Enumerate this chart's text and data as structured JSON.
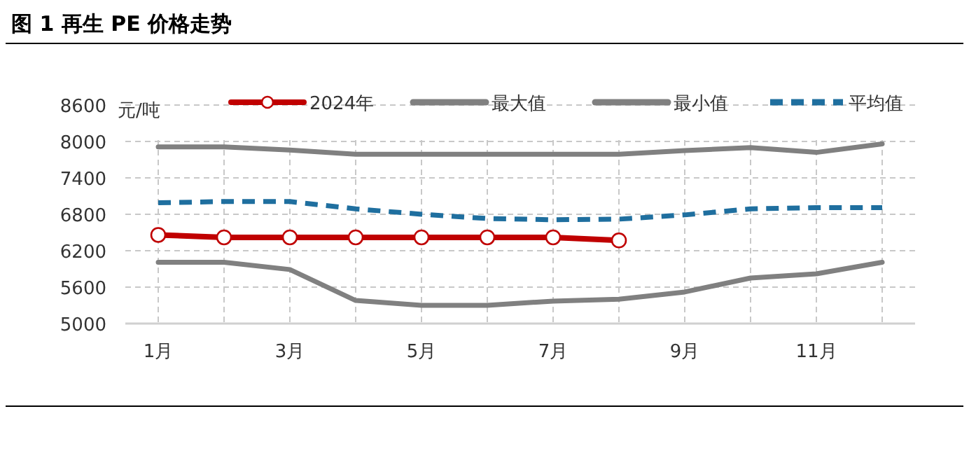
{
  "chart_data": {
    "type": "line",
    "title": "图 1 再生 PE 价格走势",
    "ylabel": "元/吨",
    "categories": [
      "1月",
      null,
      "3月",
      null,
      "5月",
      null,
      "7月",
      null,
      "9月",
      null,
      "11月",
      null
    ],
    "series": [
      {
        "name": "2024年",
        "color": "#c00000",
        "marker": "circle",
        "line_style": "solid",
        "values": [
          6460,
          6420,
          6420,
          6420,
          6420,
          6420,
          6420,
          6370,
          null,
          null,
          null,
          null
        ]
      },
      {
        "name": "最大值",
        "color": "#808080",
        "marker": "none",
        "line_style": "solid",
        "values": [
          7910,
          7910,
          7860,
          7790,
          7790,
          7790,
          7790,
          7790,
          7850,
          7900,
          7820,
          7960
        ]
      },
      {
        "name": "最小值",
        "color": "#808080",
        "marker": "none",
        "line_style": "solid",
        "values": [
          6010,
          6010,
          5890,
          5380,
          5300,
          5300,
          5370,
          5400,
          5520,
          5750,
          5820,
          6010
        ]
      },
      {
        "name": "平均值",
        "color": "#1f6f9f",
        "marker": "none",
        "line_style": "dashed",
        "values": [
          6990,
          7010,
          7010,
          6890,
          6800,
          6730,
          6710,
          6720,
          6790,
          6890,
          6910,
          6910
        ]
      }
    ],
    "ylim": [
      5000,
      8600
    ],
    "yticks": [
      5000,
      5600,
      6200,
      6800,
      7400,
      8000,
      8600
    ],
    "grid": true,
    "legend": "top"
  }
}
